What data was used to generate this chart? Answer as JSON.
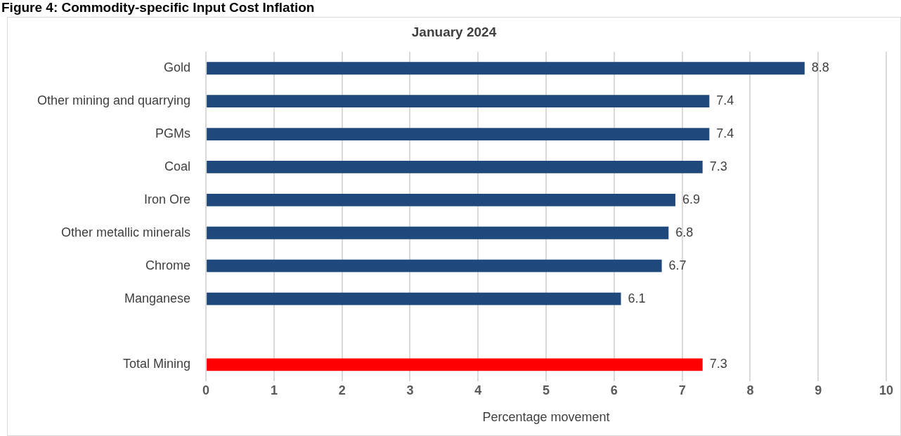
{
  "chart_data": {
    "type": "bar",
    "title": "Figure 4: Commodity-specific Input Cost Inflation",
    "subtitle": "January 2024",
    "xlabel": "Percentage movement",
    "orientation": "horizontal",
    "categories": [
      "Gold",
      "Other mining and quarrying",
      "PGMs",
      "Coal",
      "Iron Ore",
      "Other metallic minerals",
      "Chrome",
      "Manganese",
      null,
      "Total Mining"
    ],
    "values": [
      8.8,
      7.4,
      7.4,
      7.3,
      6.9,
      6.8,
      6.7,
      6.1,
      null,
      7.3
    ],
    "colors": [
      "#1f497d",
      "#1f497d",
      "#1f497d",
      "#1f497d",
      "#1f497d",
      "#1f497d",
      "#1f497d",
      "#1f497d",
      "#1f497d",
      "#ff0000"
    ],
    "xlim": [
      0,
      10
    ],
    "xticks": [
      0,
      1,
      2,
      3,
      4,
      5,
      6,
      7,
      8,
      9,
      10
    ],
    "grid": "x",
    "legend": false,
    "data_labels": true
  }
}
